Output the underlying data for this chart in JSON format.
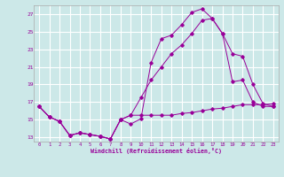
{
  "xlabel": "Windchill (Refroidissement éolien,°C)",
  "xlim": [
    -0.5,
    23.5
  ],
  "ylim": [
    12.5,
    28.0
  ],
  "yticks": [
    13,
    15,
    17,
    19,
    21,
    23,
    25,
    27
  ],
  "xticks": [
    0,
    1,
    2,
    3,
    4,
    5,
    6,
    7,
    8,
    9,
    10,
    11,
    12,
    13,
    14,
    15,
    16,
    17,
    18,
    19,
    20,
    21,
    22,
    23
  ],
  "bg_color": "#cce8e8",
  "grid_color": "#ffffff",
  "line_color": "#990099",
  "line1_x": [
    0,
    1,
    2,
    3,
    4,
    5,
    6,
    7,
    8,
    9,
    10,
    11,
    12,
    13,
    14,
    15,
    16,
    17,
    18,
    19,
    20,
    21,
    22,
    23
  ],
  "line1_y": [
    16.5,
    15.3,
    14.8,
    13.2,
    13.5,
    13.3,
    13.1,
    12.8,
    15.0,
    14.5,
    15.1,
    21.5,
    24.2,
    24.6,
    25.8,
    27.2,
    27.6,
    26.5,
    24.8,
    19.3,
    19.5,
    17.0,
    16.5,
    16.5
  ],
  "line2_x": [
    0,
    1,
    2,
    3,
    4,
    5,
    6,
    7,
    8,
    9,
    10,
    11,
    12,
    13,
    14,
    15,
    16,
    17,
    18,
    19,
    20,
    21,
    22,
    23
  ],
  "line2_y": [
    16.5,
    15.3,
    14.8,
    13.2,
    13.5,
    13.3,
    13.1,
    12.8,
    15.0,
    15.5,
    17.5,
    19.5,
    21.0,
    22.5,
    23.5,
    24.8,
    26.3,
    26.5,
    24.8,
    22.5,
    22.2,
    19.0,
    16.8,
    16.5
  ],
  "line3_x": [
    0,
    1,
    2,
    3,
    4,
    5,
    6,
    7,
    8,
    9,
    10,
    11,
    12,
    13,
    14,
    15,
    16,
    17,
    18,
    19,
    20,
    21,
    22,
    23
  ],
  "line3_y": [
    16.5,
    15.3,
    14.8,
    13.2,
    13.5,
    13.3,
    13.1,
    12.8,
    15.0,
    15.5,
    15.5,
    15.5,
    15.5,
    15.5,
    15.7,
    15.8,
    16.0,
    16.2,
    16.3,
    16.5,
    16.7,
    16.7,
    16.7,
    16.8
  ]
}
